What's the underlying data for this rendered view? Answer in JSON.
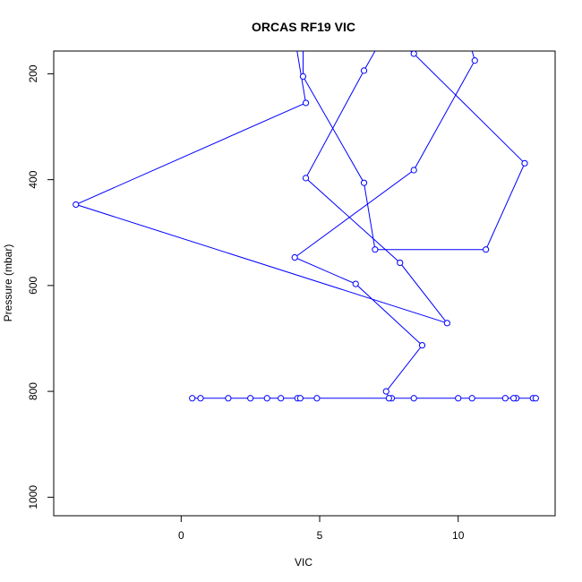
{
  "chart_data": {
    "type": "line",
    "title": "ORCAS RF19 VIC",
    "xlabel": "VIC",
    "ylabel": "Pressure (mbar)",
    "xlim": [
      -4.6,
      13.5
    ],
    "ylim": [
      1035,
      157
    ],
    "y_reversed": true,
    "grid": false,
    "legend": "none",
    "x_ticks": [
      0,
      5,
      10
    ],
    "y_ticks": [
      200,
      400,
      600,
      800,
      1000
    ],
    "series": [
      {
        "color": "#0000ff",
        "marker": "open-circle",
        "points": [
          {
            "x": 12.7,
            "y": 813
          },
          {
            "x": 0.7,
            "y": 813
          },
          {
            "x": 12.1,
            "y": 813
          },
          {
            "x": 1.7,
            "y": 813
          },
          {
            "x": 11.7,
            "y": 813
          },
          {
            "x": 2.5,
            "y": 813
          },
          {
            "x": 10.5,
            "y": 813
          },
          {
            "x": 3.1,
            "y": 813
          },
          {
            "x": 10.0,
            "y": 813
          },
          {
            "x": 3.6,
            "y": 813
          },
          {
            "x": 8.4,
            "y": 813
          },
          {
            "x": 4.2,
            "y": 813
          },
          {
            "x": 7.6,
            "y": 813
          },
          {
            "x": 4.3,
            "y": 813
          },
          {
            "x": 4.9,
            "y": 813
          },
          {
            "x": 12.0,
            "y": 813
          },
          {
            "x": 0.4,
            "y": 813
          },
          {
            "x": 12.8,
            "y": 813
          },
          {
            "x": 7.5,
            "y": 813
          },
          {
            "x": 7.4,
            "y": 800
          },
          {
            "x": 8.7,
            "y": 713
          },
          {
            "x": 6.3,
            "y": 597
          },
          {
            "x": 4.1,
            "y": 547
          },
          {
            "x": 8.4,
            "y": 382
          },
          {
            "x": 10.6,
            "y": 175
          },
          {
            "x": 10.3,
            "y": 120
          },
          {
            "x": 4.0,
            "y": 100
          },
          {
            "x": 4.5,
            "y": 255
          },
          {
            "x": -3.8,
            "y": 447
          },
          {
            "x": 9.6,
            "y": 671
          },
          {
            "x": 7.9,
            "y": 557
          },
          {
            "x": 4.5,
            "y": 397
          },
          {
            "x": 6.6,
            "y": 194
          },
          {
            "x": 7.4,
            "y": 120
          },
          {
            "x": 8.4,
            "y": 162
          },
          {
            "x": 12.4,
            "y": 369
          },
          {
            "x": 11.0,
            "y": 532
          },
          {
            "x": 7.0,
            "y": 532
          },
          {
            "x": 6.6,
            "y": 406
          },
          {
            "x": 4.4,
            "y": 205
          },
          {
            "x": 4.4,
            "y": 100
          }
        ]
      }
    ]
  }
}
